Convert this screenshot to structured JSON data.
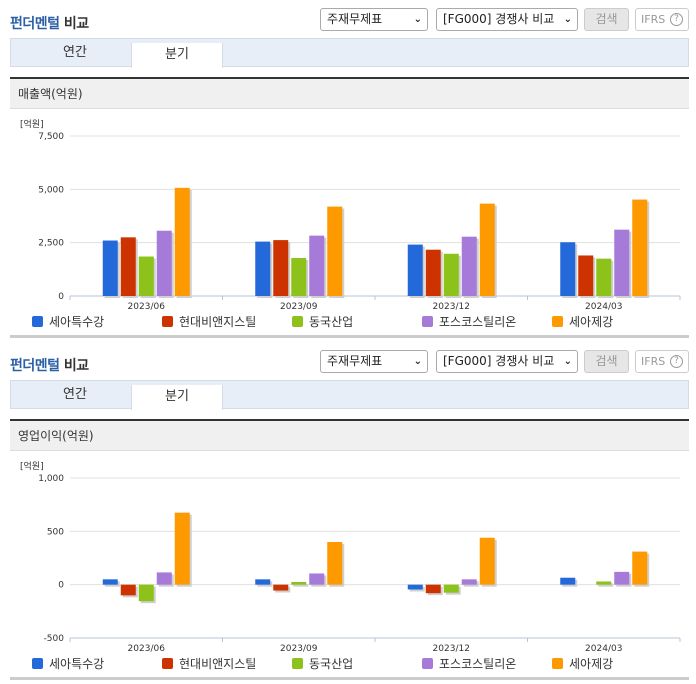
{
  "panels": [
    {
      "header": {
        "title_blue": "펀더멘털",
        "title_rest": " 비교"
      },
      "controls": {
        "statement_select": "주재무제표",
        "group_select": "[FG000] 경쟁사 비교",
        "search_label": "검색",
        "ifrs_label": "IFRS",
        "help_icon": "?"
      },
      "tabs": [
        {
          "label": "연간",
          "active": false
        },
        {
          "label": "분기",
          "active": true
        }
      ],
      "chart_title": "매출액(억원)",
      "unit_label": "[억원]"
    },
    {
      "header": {
        "title_blue": "펀더멘털",
        "title_rest": " 비교"
      },
      "controls": {
        "statement_select": "주재무제표",
        "group_select": "[FG000] 경쟁사 비교",
        "search_label": "검색",
        "ifrs_label": "IFRS",
        "help_icon": "?"
      },
      "tabs": [
        {
          "label": "연간",
          "active": false
        },
        {
          "label": "분기",
          "active": true
        }
      ],
      "chart_title": "영업이익(억원)",
      "unit_label": "[억원]"
    }
  ],
  "legend": [
    {
      "name": "세아특수강",
      "color": "#2369d9"
    },
    {
      "name": "현대비앤지스틸",
      "color": "#cc3300"
    },
    {
      "name": "동국산업",
      "color": "#8cc21a"
    },
    {
      "name": "포스코스틸리온",
      "color": "#a67ad9"
    },
    {
      "name": "세아제강",
      "color": "#ff9900"
    }
  ],
  "chart_data": [
    {
      "type": "bar",
      "title": "매출액(억원)",
      "ylabel": "[억원]",
      "xlabel": "",
      "categories": [
        "2023/06",
        "2023/09",
        "2023/12",
        "2024/03"
      ],
      "yticks": [
        0,
        2500,
        5000,
        7500
      ],
      "ytick_labels": [
        "0",
        "2,500",
        "5,000",
        "7,500"
      ],
      "ylim": [
        0,
        7500
      ],
      "grid": true,
      "legend_position": "bottom",
      "series": [
        {
          "name": "세아특수강",
          "color": "#2369d9",
          "values": [
            2600,
            2550,
            2410,
            2520
          ]
        },
        {
          "name": "현대비앤지스틸",
          "color": "#cc3300",
          "values": [
            2750,
            2620,
            2170,
            1900
          ]
        },
        {
          "name": "동국산업",
          "color": "#8cc21a",
          "values": [
            1850,
            1780,
            1980,
            1750
          ]
        },
        {
          "name": "포스코스틸리온",
          "color": "#a67ad9",
          "values": [
            3060,
            2830,
            2780,
            3110
          ]
        },
        {
          "name": "세아제강",
          "color": "#ff9900",
          "values": [
            5070,
            4190,
            4330,
            4520
          ]
        }
      ]
    },
    {
      "type": "bar",
      "title": "영업이익(억원)",
      "ylabel": "[억원]",
      "xlabel": "",
      "categories": [
        "2023/06",
        "2023/09",
        "2023/12",
        "2024/03"
      ],
      "yticks": [
        -500,
        0,
        500,
        1000
      ],
      "ytick_labels": [
        "-500",
        "0",
        "500",
        "1,000"
      ],
      "ylim": [
        -500,
        1000
      ],
      "grid": true,
      "legend_position": "bottom",
      "series": [
        {
          "name": "세아특수강",
          "color": "#2369d9",
          "values": [
            50,
            50,
            -45,
            65
          ]
        },
        {
          "name": "현대비앤지스틸",
          "color": "#cc3300",
          "values": [
            -100,
            -55,
            -80,
            0
          ]
        },
        {
          "name": "동국산업",
          "color": "#8cc21a",
          "values": [
            -155,
            25,
            -75,
            30
          ]
        },
        {
          "name": "포스코스틸리온",
          "color": "#a67ad9",
          "values": [
            115,
            105,
            50,
            120
          ]
        },
        {
          "name": "세아제강",
          "color": "#ff9900",
          "values": [
            675,
            400,
            440,
            310
          ]
        }
      ]
    }
  ]
}
